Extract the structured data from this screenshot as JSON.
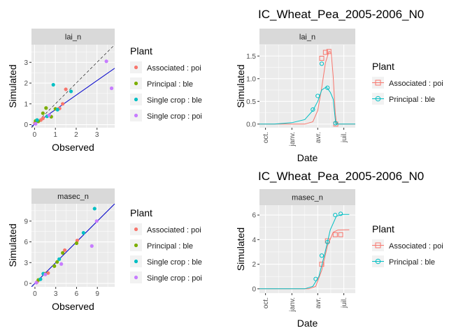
{
  "colors": {
    "associated_poi": "#F8766D",
    "principal_ble": "#7CAE00",
    "single_ble": "#00BFC4",
    "single_poi": "#C77CFF",
    "fit_line": "#0000CC",
    "panel_bg": "#EBEBEB",
    "strip_bg": "#D9D9D9",
    "grid": "#FFFFFF"
  },
  "chart_data": [
    {
      "type": "scatter",
      "strip": "lai_n",
      "title": "",
      "xlabel": "Observed",
      "ylabel": "Simulated",
      "xlim": [
        -0.15,
        3.85
      ],
      "ylim": [
        -0.15,
        3.85
      ],
      "xticks": [
        0,
        1,
        2,
        3
      ],
      "yticks": [
        0,
        1,
        2,
        3
      ],
      "grid": true,
      "identity_line": true,
      "fit_line": {
        "intercept": 0.02,
        "slope": 0.7
      },
      "legend": {
        "title": "Plant",
        "position": "right",
        "entries": [
          {
            "label": "Associated : poi",
            "color_key": "associated_poi"
          },
          {
            "label": "Principal : ble",
            "color_key": "principal_ble"
          },
          {
            "label": "Single crop : ble",
            "color_key": "single_ble"
          },
          {
            "label": "Single crop : poi",
            "color_key": "single_poi"
          }
        ]
      },
      "series": [
        {
          "name": "Associated : poi",
          "color_key": "associated_poi",
          "points": [
            [
              0.02,
              0.08
            ],
            [
              0.3,
              0.22
            ],
            [
              1.2,
              0.78
            ],
            [
              1.35,
              1.0
            ],
            [
              1.5,
              1.7
            ],
            [
              0.4,
              0.3
            ]
          ]
        },
        {
          "name": "Principal : ble",
          "color_key": "principal_ble",
          "points": [
            [
              0.05,
              0.18
            ],
            [
              0.4,
              0.55
            ],
            [
              0.55,
              0.8
            ],
            [
              1.0,
              0.76
            ],
            [
              0.8,
              0.38
            ],
            [
              0.18,
              0.16
            ]
          ]
        },
        {
          "name": "Single crop : ble",
          "color_key": "single_ble",
          "points": [
            [
              0.9,
              1.92
            ],
            [
              1.75,
              1.6
            ],
            [
              0.12,
              0.22
            ],
            [
              0.6,
              0.4
            ],
            [
              1.1,
              0.72
            ]
          ]
        },
        {
          "name": "Single crop : poi",
          "color_key": "single_poi",
          "points": [
            [
              3.45,
              3.05
            ],
            [
              3.7,
              1.75
            ],
            [
              0.7,
              0.45
            ],
            [
              0.05,
              0.04
            ]
          ]
        }
      ]
    },
    {
      "type": "scatter",
      "strip": "masec_n",
      "title": "",
      "xlabel": "Observed",
      "ylabel": "Simulated",
      "xlim": [
        -0.5,
        11.5
      ],
      "ylim": [
        -0.5,
        11.5
      ],
      "xticks": [
        0,
        3,
        6,
        9
      ],
      "yticks": [
        0,
        3,
        6,
        9
      ],
      "grid": true,
      "identity_line": true,
      "fit_line": {
        "intercept": 0.0,
        "slope": 1.0
      },
      "legend": {
        "title": "Plant",
        "position": "right",
        "entries": [
          {
            "label": "Associated : poi",
            "color_key": "associated_poi"
          },
          {
            "label": "Principal : ble",
            "color_key": "principal_ble"
          },
          {
            "label": "Single crop : ble",
            "color_key": "single_ble"
          },
          {
            "label": "Single crop : poi",
            "color_key": "single_poi"
          }
        ]
      },
      "series": [
        {
          "name": "Associated : poi",
          "color_key": "associated_poi",
          "points": [
            [
              0.3,
              0.2
            ],
            [
              1.9,
              1.5
            ],
            [
              4.3,
              4.8
            ],
            [
              6.1,
              6.2
            ]
          ]
        },
        {
          "name": "Principal : ble",
          "color_key": "principal_ble",
          "points": [
            [
              0.5,
              0.5
            ],
            [
              1.5,
              1.4
            ],
            [
              2.8,
              2.5
            ],
            [
              4.0,
              4.4
            ],
            [
              6.0,
              5.8
            ],
            [
              3.2,
              3.1
            ]
          ]
        },
        {
          "name": "Single crop : ble",
          "color_key": "single_ble",
          "points": [
            [
              1.2,
              1.4
            ],
            [
              3.5,
              3.5
            ],
            [
              7.0,
              7.3
            ],
            [
              8.6,
              10.8
            ],
            [
              0.8,
              0.6
            ]
          ]
        },
        {
          "name": "Single crop : poi",
          "color_key": "single_poi",
          "points": [
            [
              0.2,
              0.1
            ],
            [
              3.8,
              2.8
            ],
            [
              8.2,
              5.4
            ],
            [
              8.9,
              9.0
            ],
            [
              1.5,
              1.3
            ]
          ]
        }
      ]
    },
    {
      "type": "line",
      "title": "IC_Wheat_Pea_2005-2006_N0",
      "strip": "lai_n",
      "xlabel": "Date",
      "ylabel": "Simulated",
      "xlim": [
        "2005-09-10",
        "2006-08-10"
      ],
      "ylim": [
        -0.08,
        1.75
      ],
      "xticks": [
        {
          "date": "2005-10-01",
          "label": "oct."
        },
        {
          "date": "2006-01-01",
          "label": "janv."
        },
        {
          "date": "2006-04-01",
          "label": "avr."
        },
        {
          "date": "2006-07-01",
          "label": "juil."
        }
      ],
      "yticks": [
        0.0,
        0.5,
        1.0,
        1.5
      ],
      "grid": true,
      "legend": {
        "title": "Plant",
        "position": "right",
        "entries": [
          {
            "label": "Associated : poi",
            "color_key": "associated_poi",
            "shape": "square"
          },
          {
            "label": "Principal : ble",
            "color_key": "principal_ble_line",
            "shape": "circle"
          }
        ]
      },
      "series": [
        {
          "name": "Associated : poi",
          "color_key": "associated_poi",
          "marker": "square",
          "line": [
            [
              "2005-09-10",
              0
            ],
            [
              "2006-02-15",
              0
            ],
            [
              "2006-03-15",
              0.05
            ],
            [
              "2006-04-01",
              0.3
            ],
            [
              "2006-04-15",
              0.8
            ],
            [
              "2006-04-28",
              1.35
            ],
            [
              "2006-05-10",
              1.6
            ],
            [
              "2006-05-18",
              1.58
            ],
            [
              "2006-05-25",
              1.05
            ],
            [
              "2006-06-01",
              0.25
            ],
            [
              "2006-06-06",
              0
            ],
            [
              "2006-08-10",
              0
            ]
          ],
          "points": [
            [
              "2006-04-15",
              1.45
            ],
            [
              "2006-04-28",
              1.58
            ],
            [
              "2006-05-10",
              1.6
            ],
            [
              "2006-06-03",
              0.0
            ]
          ]
        },
        {
          "name": "Principal : ble",
          "color_key": "single_ble",
          "marker": "circle",
          "line": [
            [
              "2005-09-10",
              0
            ],
            [
              "2005-11-01",
              0.0
            ],
            [
              "2006-01-01",
              0.03
            ],
            [
              "2006-02-15",
              0.1
            ],
            [
              "2006-03-15",
              0.3
            ],
            [
              "2006-04-01",
              0.5
            ],
            [
              "2006-04-15",
              0.75
            ],
            [
              "2006-05-01",
              0.82
            ],
            [
              "2006-05-15",
              0.7
            ],
            [
              "2006-05-25",
              0.55
            ],
            [
              "2006-06-03",
              0.0
            ],
            [
              "2006-08-10",
              0
            ]
          ],
          "points": [
            [
              "2006-03-15",
              0.32
            ],
            [
              "2006-04-01",
              0.62
            ],
            [
              "2006-04-15",
              1.33
            ],
            [
              "2006-05-05",
              0.8
            ],
            [
              "2006-06-02",
              0.02
            ]
          ]
        }
      ]
    },
    {
      "type": "line",
      "title": "IC_Wheat_Pea_2005-2006_N0",
      "strip": "masec_n",
      "xlabel": "Date",
      "ylabel": "Simulated",
      "xlim": [
        "2005-09-10",
        "2006-08-10"
      ],
      "ylim": [
        -0.35,
        6.8
      ],
      "xticks": [
        {
          "date": "2005-10-01",
          "label": "oct."
        },
        {
          "date": "2006-01-01",
          "label": "janv."
        },
        {
          "date": "2006-04-01",
          "label": "avr."
        },
        {
          "date": "2006-07-01",
          "label": "juil."
        }
      ],
      "yticks": [
        0,
        2,
        4,
        6
      ],
      "grid": true,
      "legend": {
        "title": "Plant",
        "position": "right",
        "entries": [
          {
            "label": "Associated : poi",
            "color_key": "associated_poi",
            "shape": "square"
          },
          {
            "label": "Principal : ble",
            "color_key": "single_ble",
            "shape": "circle"
          }
        ]
      },
      "series": [
        {
          "name": "Associated : poi",
          "color_key": "associated_poi",
          "marker": "square",
          "line": [
            [
              "2005-09-10",
              0
            ],
            [
              "2006-03-01",
              0
            ],
            [
              "2006-03-25",
              0.2
            ],
            [
              "2006-04-15",
              1.5
            ],
            [
              "2006-05-05",
              3.5
            ],
            [
              "2006-05-25",
              4.6
            ],
            [
              "2006-06-10",
              4.78
            ],
            [
              "2006-07-20",
              4.8
            ]
          ],
          "points": [
            [
              "2006-04-15",
              2.0
            ],
            [
              "2006-05-05",
              3.9
            ],
            [
              "2006-06-01",
              4.4
            ],
            [
              "2006-06-20",
              4.4
            ]
          ]
        },
        {
          "name": "Principal : ble",
          "color_key": "single_ble",
          "marker": "circle",
          "line": [
            [
              "2005-09-10",
              0
            ],
            [
              "2006-02-15",
              0
            ],
            [
              "2006-03-15",
              0.2
            ],
            [
              "2006-04-05",
              1.0
            ],
            [
              "2006-04-25",
              2.8
            ],
            [
              "2006-05-15",
              4.8
            ],
            [
              "2006-06-05",
              5.9
            ],
            [
              "2006-06-25",
              6.05
            ],
            [
              "2006-07-20",
              6.05
            ]
          ],
          "points": [
            [
              "2006-03-25",
              0.8
            ],
            [
              "2006-04-15",
              2.7
            ],
            [
              "2006-05-05",
              3.8
            ],
            [
              "2006-06-01",
              6.0
            ],
            [
              "2006-06-20",
              6.1
            ]
          ]
        }
      ]
    }
  ]
}
